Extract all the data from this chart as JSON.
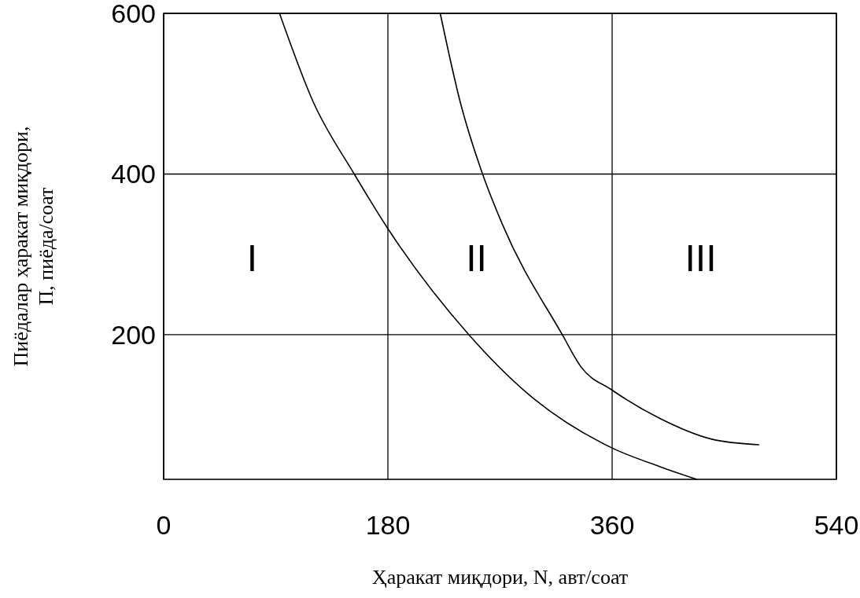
{
  "chart_data": {
    "type": "line",
    "xlabel": "Ҳаракат миқдори, N, авт/соат",
    "ylabel": "Пиёдалар ҳаракат миқдори,\nП, пиёда/соат",
    "xlim": [
      0,
      540
    ],
    "ylim": [
      20,
      600
    ],
    "xticks": [
      0,
      180,
      360,
      540
    ],
    "yticks": [
      200,
      400,
      600
    ],
    "grid": true,
    "line_style": "solid",
    "series": [
      {
        "color": "#000000",
        "x": [
          93,
          120,
          153,
          180,
          245,
          292,
          360,
          398,
          428
        ],
        "values": [
          600,
          490,
          400,
          332,
          200,
          127,
          59,
          36,
          20
        ]
      },
      {
        "color": "#000000",
        "x": [
          222,
          238,
          256,
          272,
          320,
          335,
          360,
          398,
          440,
          478
        ],
        "values": [
          600,
          490,
          400,
          337,
          200,
          160,
          131,
          96,
          70,
          63
        ]
      }
    ],
    "annotations": [
      "I",
      "II",
      "III"
    ]
  }
}
